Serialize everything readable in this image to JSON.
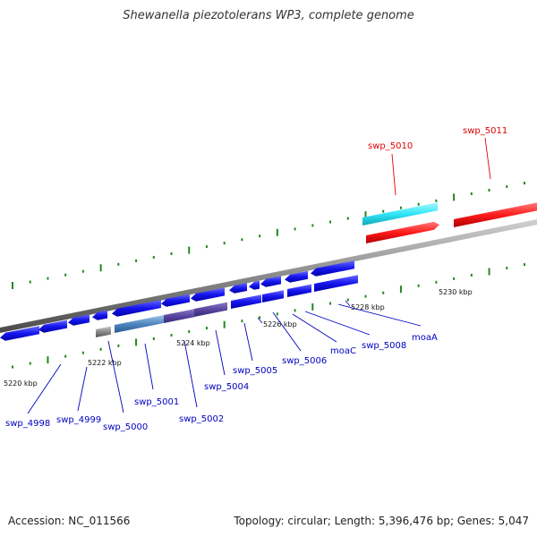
{
  "title": "Shewanella piezotolerans WP3, complete genome",
  "footer": {
    "accession": "Accession: NC_011566",
    "summary": "Topology: circular; Length: 5,396,476 bp; Genes: 5,047"
  },
  "colors": {
    "gene": "#1010e6",
    "highlight": "#ff1010",
    "cyan": "#22e0f0",
    "axis": "#808080",
    "tick": "#228822",
    "gene_label": "#0000c0",
    "highlight_label": "#e00000"
  },
  "ticks": [
    {
      "label": "5220 kbp"
    },
    {
      "label": "5222 kbp"
    },
    {
      "label": "5224 kbp"
    },
    {
      "label": "5226 kbp"
    },
    {
      "label": "5228 kbp"
    },
    {
      "label": "5230 kbp"
    }
  ],
  "labels": [
    {
      "text": "swp_4998"
    },
    {
      "text": "swp_4999"
    },
    {
      "text": "swp_5000"
    },
    {
      "text": "swp_5001"
    },
    {
      "text": "swp_5002"
    },
    {
      "text": "swp_5004"
    },
    {
      "text": "swp_5005"
    },
    {
      "text": "swp_5006"
    },
    {
      "text": "moaC"
    },
    {
      "text": "swp_5008"
    },
    {
      "text": "moaA"
    },
    {
      "text": "swp_5010"
    },
    {
      "text": "swp_5011"
    }
  ]
}
